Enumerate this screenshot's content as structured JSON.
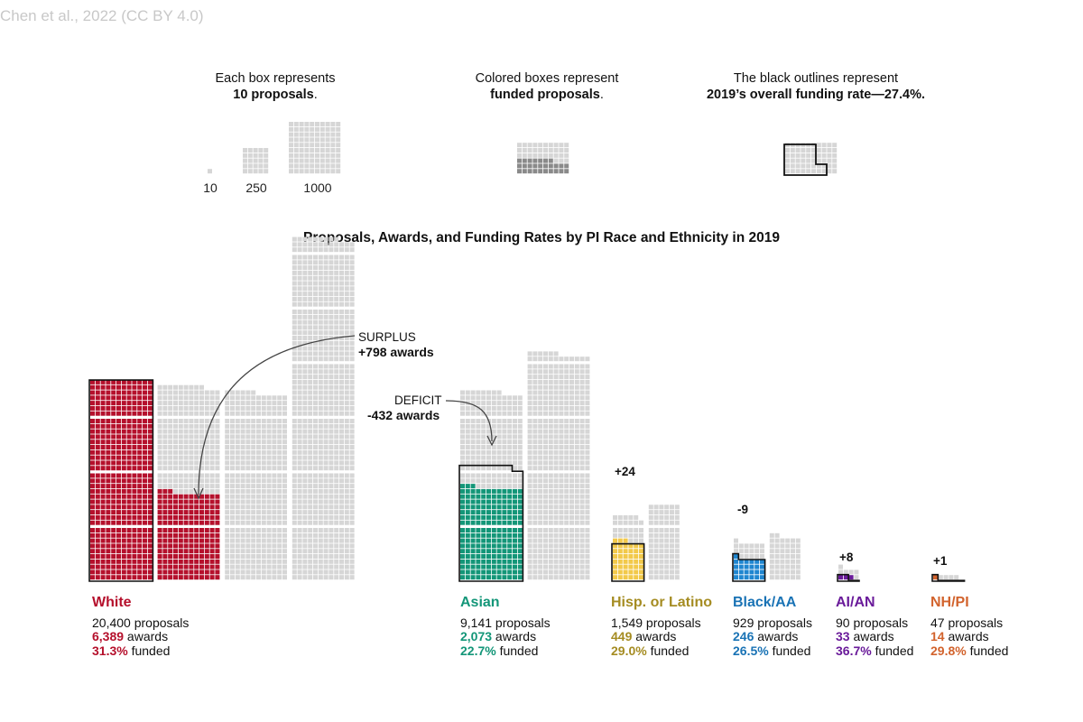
{
  "credit": "Chen et al., 2022 (CC BY 4.0)",
  "legend": {
    "box_size": {
      "line1": "Each box represents",
      "bold": "10 proposals",
      "tail": "."
    },
    "colored": {
      "line1": "Colored boxes represent",
      "bold": "funded proposals",
      "tail": "."
    },
    "outline": {
      "line1": "The black outlines represent",
      "bold": "2019’s overall funding rate—27.4%."
    },
    "scale_labels": [
      "10",
      "250",
      "1000"
    ],
    "scale_values": [
      10,
      250,
      1000
    ]
  },
  "chart_data": {
    "type": "waffle",
    "title": "Proposals, Awards, and Funding Rates by PI Race and Ethnicity in 2019",
    "unit_per_box": 10,
    "overall_funding_rate": 27.4,
    "groups": [
      {
        "name": "White",
        "proposals": 20400,
        "awards": 6389,
        "funded_pct": 31.3,
        "difference": 798,
        "proposals_label": "20,400 proposals",
        "awards_label": "6,389",
        "funded_label": "31.3%",
        "color": "#b5102c"
      },
      {
        "name": "Asian",
        "proposals": 9141,
        "awards": 2073,
        "funded_pct": 22.7,
        "difference": -432,
        "proposals_label": "9,141 proposals",
        "awards_label": "2,073",
        "funded_label": "22.7%",
        "color": "#139678"
      },
      {
        "name": "Hisp. or Latino",
        "proposals": 1549,
        "awards": 449,
        "funded_pct": 29.0,
        "difference": 24,
        "proposals_label": "1,549 proposals",
        "awards_label": "449",
        "funded_label": "29.0%",
        "color": "#a58c22",
        "fill": "#f2c94a"
      },
      {
        "name": "Black/AA",
        "proposals": 929,
        "awards": 246,
        "funded_pct": 26.5,
        "difference": -9,
        "proposals_label": "929 proposals",
        "awards_label": "246",
        "funded_label": "26.5%",
        "color": "#1a73b5",
        "fill": "#1f86d0"
      },
      {
        "name": "AI/AN",
        "proposals": 90,
        "awards": 33,
        "funded_pct": 36.7,
        "difference": 8,
        "proposals_label": "90 proposals",
        "awards_label": "33",
        "funded_label": "36.7%",
        "color": "#6a1b9a"
      },
      {
        "name": "NH/PI",
        "proposals": 47,
        "awards": 14,
        "funded_pct": 29.8,
        "difference": 1,
        "proposals_label": "47 proposals",
        "awards_label": "14",
        "funded_label": "29.8%",
        "color": "#d2632d"
      }
    ],
    "difference_labels": [
      "+24",
      "-9",
      "+8",
      "+1"
    ],
    "annotations": {
      "surplus": {
        "label": "SURPLUS",
        "value": "+798 awards"
      },
      "deficit": {
        "label": "DEFICIT",
        "value": "-432 awards"
      }
    },
    "word_awards": " awards",
    "word_funded": " funded"
  }
}
